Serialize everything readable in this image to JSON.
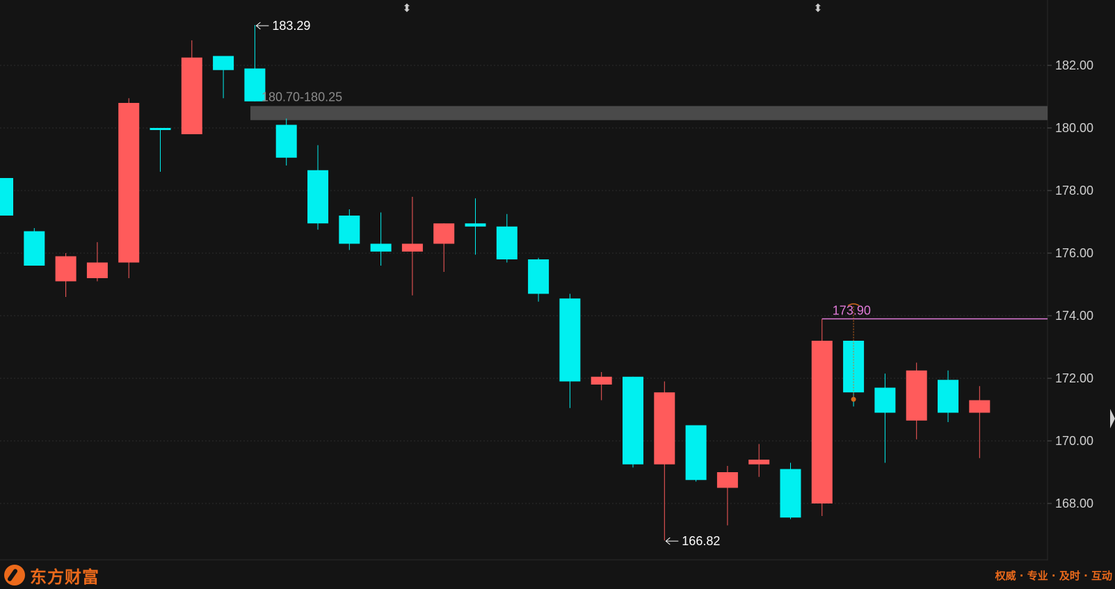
{
  "chart_data": {
    "type": "candlestick",
    "y_axis": {
      "ticks": [
        "182.00",
        "180.00",
        "178.00",
        "176.00",
        "174.00",
        "172.00",
        "170.00",
        "168.00"
      ],
      "range": [
        166.0,
        184.3
      ]
    },
    "candles": [
      {
        "open": 178.4,
        "close": 177.2,
        "high": 178.4,
        "low": 177.2
      },
      {
        "open": 176.7,
        "close": 175.6,
        "high": 176.8,
        "low": 175.6
      },
      {
        "open": 175.1,
        "close": 175.9,
        "high": 176.0,
        "low": 174.6
      },
      {
        "open": 175.2,
        "close": 175.7,
        "high": 176.35,
        "low": 175.1
      },
      {
        "open": 175.7,
        "close": 180.8,
        "high": 180.95,
        "low": 175.2
      },
      {
        "open": 180.0,
        "close": 179.95,
        "high": 180.0,
        "low": 178.6
      },
      {
        "open": 179.8,
        "close": 182.25,
        "high": 182.8,
        "low": 179.8
      },
      {
        "open": 182.3,
        "close": 181.85,
        "high": 182.3,
        "low": 180.95
      },
      {
        "open": 181.9,
        "close": 180.85,
        "high": 183.29,
        "low": 180.85
      },
      {
        "open": 180.1,
        "close": 179.05,
        "high": 180.3,
        "low": 178.8
      },
      {
        "open": 178.65,
        "close": 176.95,
        "high": 179.45,
        "low": 176.75
      },
      {
        "open": 177.2,
        "close": 176.3,
        "high": 177.4,
        "low": 176.1
      },
      {
        "open": 176.3,
        "close": 176.05,
        "high": 177.3,
        "low": 175.6
      },
      {
        "open": 176.05,
        "close": 176.3,
        "high": 177.8,
        "low": 174.65
      },
      {
        "open": 176.3,
        "close": 176.95,
        "high": 176.95,
        "low": 175.4
      },
      {
        "open": 176.95,
        "close": 176.85,
        "high": 177.75,
        "low": 175.95
      },
      {
        "open": 176.85,
        "close": 175.8,
        "high": 177.25,
        "low": 175.7
      },
      {
        "open": 175.8,
        "close": 174.7,
        "high": 175.85,
        "low": 174.45
      },
      {
        "open": 174.55,
        "close": 171.9,
        "high": 174.7,
        "low": 171.05
      },
      {
        "open": 171.8,
        "close": 172.05,
        "high": 172.2,
        "low": 171.3
      },
      {
        "open": 172.05,
        "close": 169.25,
        "high": 172.05,
        "low": 169.15
      },
      {
        "open": 169.25,
        "close": 171.55,
        "high": 171.9,
        "low": 166.82
      },
      {
        "open": 170.5,
        "close": 168.75,
        "high": 170.5,
        "low": 168.7
      },
      {
        "open": 168.5,
        "close": 169.0,
        "high": 169.2,
        "low": 167.3
      },
      {
        "open": 169.25,
        "close": 169.4,
        "high": 169.9,
        "low": 168.85
      },
      {
        "open": 169.1,
        "close": 167.55,
        "high": 169.3,
        "low": 167.5
      },
      {
        "open": 168.0,
        "close": 173.2,
        "high": 173.9,
        "low": 167.6
      },
      {
        "open": 173.2,
        "close": 171.55,
        "high": 173.2,
        "low": 171.1
      },
      {
        "open": 171.7,
        "close": 170.9,
        "high": 172.15,
        "low": 169.3
      },
      {
        "open": 170.65,
        "close": 172.25,
        "high": 172.5,
        "low": 170.05
      },
      {
        "open": 171.95,
        "close": 170.9,
        "high": 172.25,
        "low": 170.6
      },
      {
        "open": 170.9,
        "close": 171.3,
        "high": 171.75,
        "low": 169.45
      }
    ],
    "annotations": {
      "high_label": "183.29",
      "low_label": "166.82",
      "zone_label": "180.70-180.25",
      "zone": [
        180.25,
        180.7
      ],
      "ref_label": "173.90",
      "ref_value": 173.9
    },
    "colors": {
      "up": "#ff5b5b",
      "down": "#00f0f0",
      "grid": "#2c2c2c",
      "zone": "#4a4a4a",
      "ref": "#e07ad8"
    }
  },
  "footer": {
    "brand": "东方财富",
    "slogan": "权威 · 专业 · 及时 · 互动"
  }
}
